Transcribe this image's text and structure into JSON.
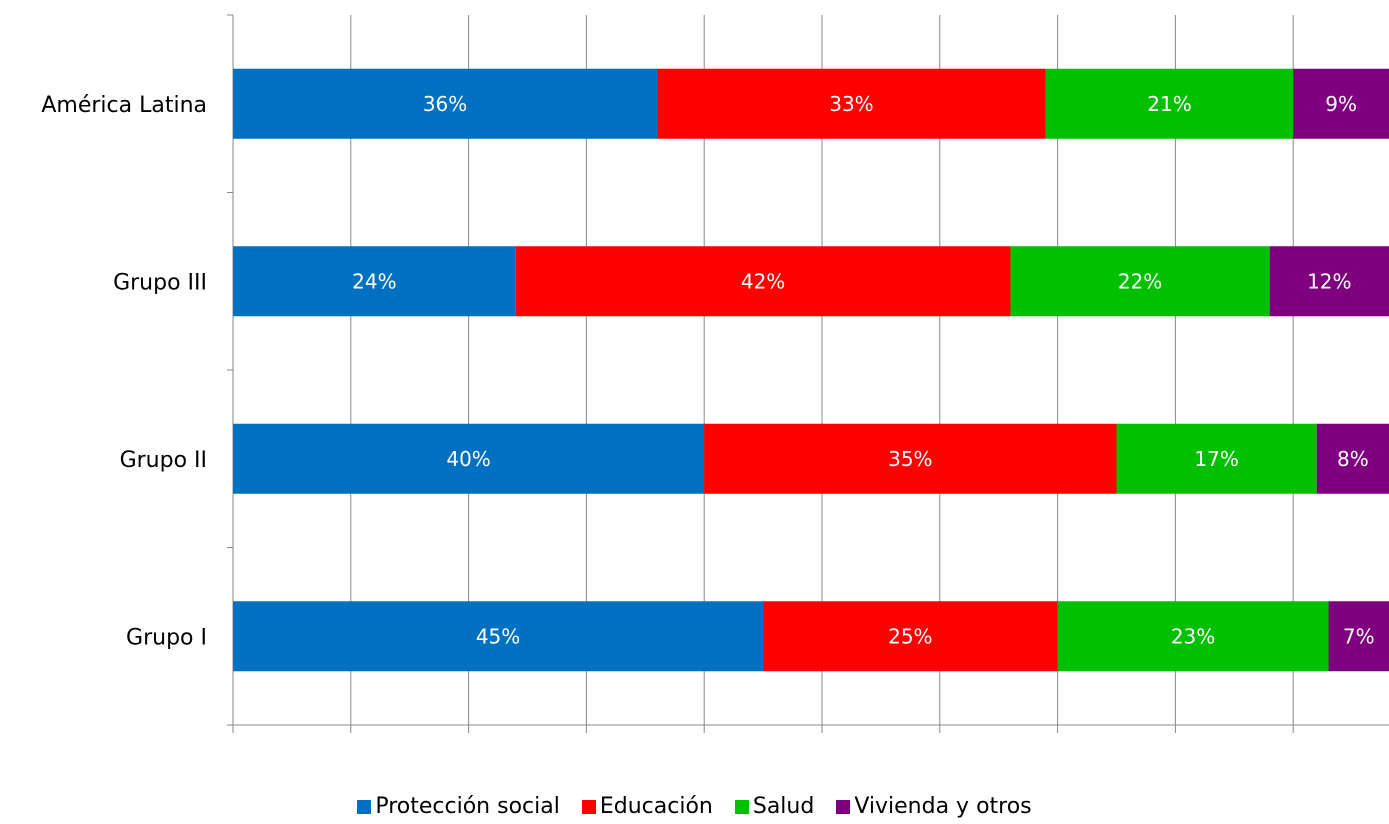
{
  "chart_data": {
    "type": "bar",
    "orientation": "horizontal",
    "stacked": true,
    "categories": [
      "América Latina",
      "Grupo III",
      "Grupo II",
      "Grupo I"
    ],
    "series": [
      {
        "name": "Protección social",
        "color": "#0070C0",
        "values": [
          36,
          24,
          40,
          45
        ],
        "labels": [
          "36%",
          "24%",
          "40%",
          "45%"
        ]
      },
      {
        "name": "Educación",
        "color": "#FF0000",
        "values": [
          33,
          42,
          35,
          25
        ],
        "labels": [
          "33%",
          "42%",
          "35%",
          "25%"
        ]
      },
      {
        "name": "Salud",
        "color": "#00C000",
        "values": [
          21,
          22,
          17,
          23
        ],
        "labels": [
          "21%",
          "22%",
          "17%",
          "23%"
        ]
      },
      {
        "name": "Vivienda y otros",
        "color": "#7F007F",
        "values": [
          9,
          12,
          8,
          7
        ],
        "labels": [
          "9%",
          "12%",
          "8%",
          "7%"
        ]
      }
    ],
    "xlim": [
      0,
      100
    ],
    "grid": true,
    "legend_position": "bottom"
  }
}
